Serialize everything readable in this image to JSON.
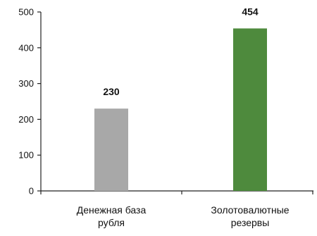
{
  "chart_data": {
    "type": "bar",
    "title": "",
    "xlabel": "",
    "ylabel": "",
    "categories": [
      [
        "Денежная база",
        "рубля"
      ],
      [
        "Золотовалютные",
        "резервы"
      ]
    ],
    "values": [
      230,
      454
    ],
    "data_labels": [
      "230",
      "454"
    ],
    "colors": [
      "#a8a8a8",
      "#4e8a3d"
    ],
    "ylim": [
      0,
      500
    ],
    "yticks": [
      0,
      100,
      200,
      300,
      400,
      500
    ],
    "ytick_labels": [
      "0",
      "100",
      "200",
      "300",
      "400",
      "500"
    ],
    "grid": false,
    "legend": "none"
  }
}
